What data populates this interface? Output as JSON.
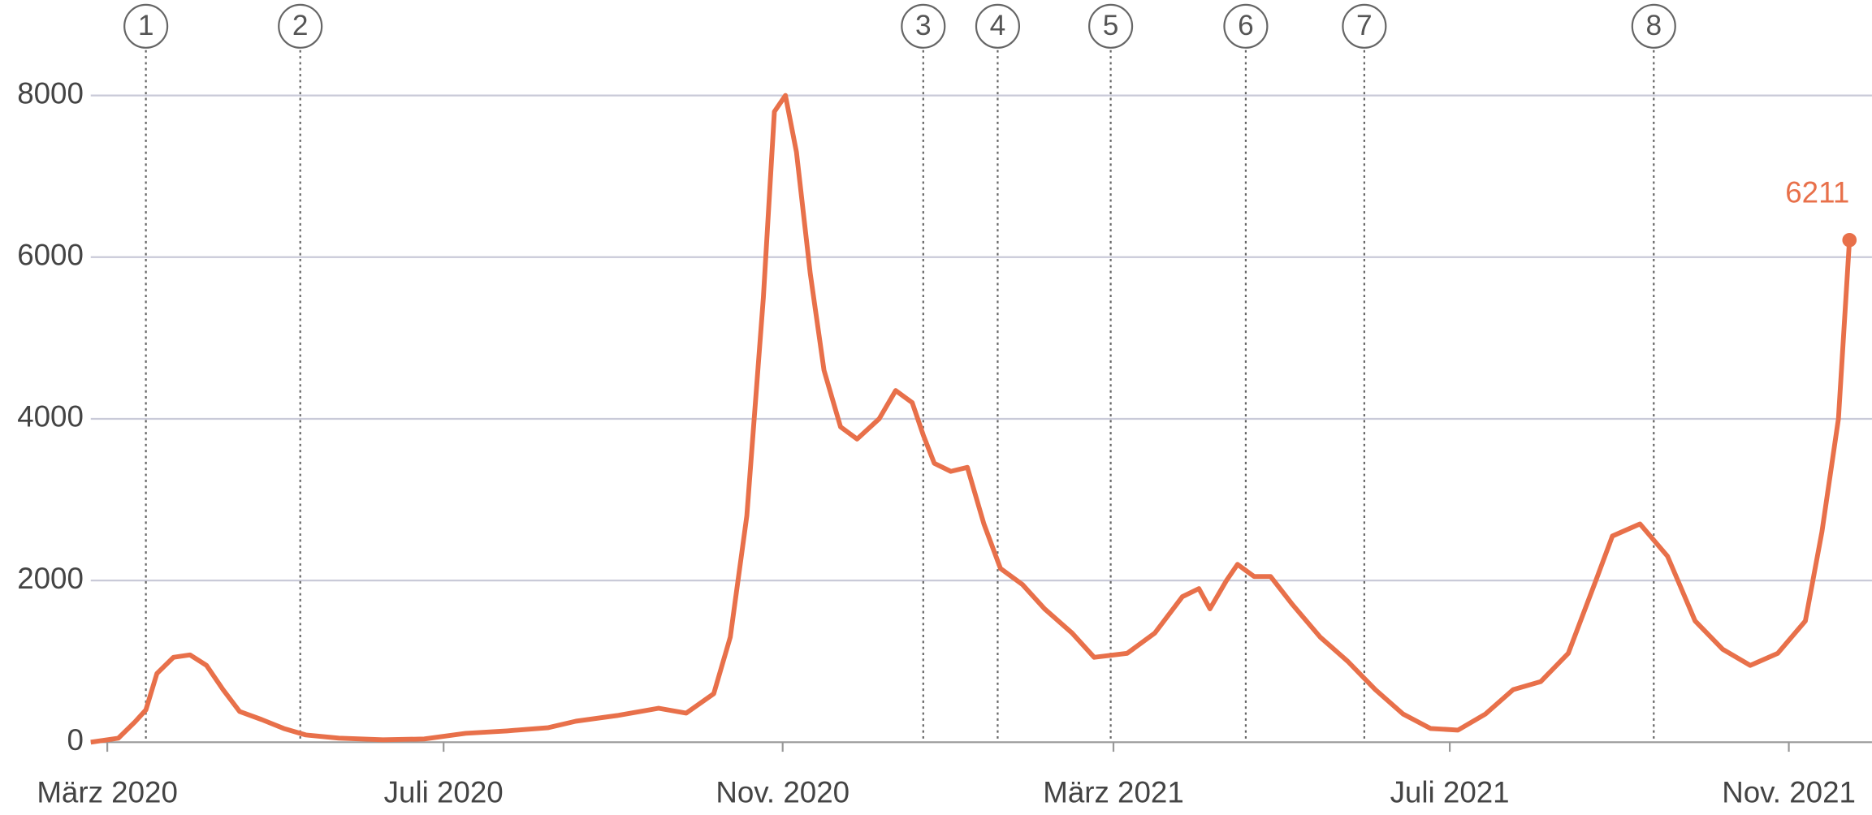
{
  "chart_data": {
    "type": "line",
    "x": [
      -6,
      4,
      10,
      14,
      18,
      24,
      30,
      36,
      42,
      48,
      56,
      64,
      72,
      84,
      100,
      115,
      130,
      145,
      160,
      170,
      185,
      200,
      210,
      220,
      226,
      232,
      238,
      242,
      246,
      250,
      255,
      260,
      266,
      272,
      280,
      286,
      292,
      296,
      300,
      306,
      312,
      318,
      324,
      332,
      340,
      350,
      358,
      370,
      380,
      390,
      396,
      400,
      406,
      410,
      416,
      422,
      430,
      440,
      450,
      460,
      470,
      480,
      490,
      500,
      510,
      520,
      530,
      540,
      546,
      556,
      566,
      576,
      586,
      596,
      606,
      616,
      622,
      628,
      632
    ],
    "series": [
      {
        "name": null,
        "color": "#e8704a",
        "values": [
          0,
          50,
          250,
          400,
          850,
          1050,
          1080,
          950,
          650,
          380,
          280,
          170,
          90,
          50,
          30,
          40,
          110,
          140,
          180,
          260,
          330,
          420,
          360,
          600,
          1300,
          2800,
          5500,
          7800,
          8000,
          7300,
          5800,
          4600,
          3900,
          3750,
          4000,
          4350,
          4200,
          3800,
          3450,
          3350,
          3400,
          2700,
          2150,
          1950,
          1650,
          1350,
          1050,
          1100,
          1350,
          1800,
          1900,
          1650,
          2000,
          2200,
          2050,
          2050,
          1700,
          1300,
          1000,
          650,
          350,
          170,
          150,
          350,
          650,
          750,
          1100,
          2000,
          2550,
          2700,
          2300,
          1500,
          1150,
          950,
          1100,
          1500,
          2600,
          4000,
          6211
        ]
      }
    ],
    "xlim": [
      -6,
      638
    ],
    "xticks": [
      {
        "value": 0,
        "label": "März 2020"
      },
      {
        "value": 122,
        "label": "Juli 2020"
      },
      {
        "value": 245,
        "label": "Nov. 2020"
      },
      {
        "value": 365,
        "label": "März 2021"
      },
      {
        "value": 487,
        "label": "Juli 2021"
      },
      {
        "value": 610,
        "label": "Nov. 2021"
      }
    ],
    "ylim": [
      0,
      8000
    ],
    "yticks": [
      0,
      2000,
      4000,
      6000,
      8000
    ],
    "grid": true,
    "events": [
      {
        "label": "1",
        "x": 14
      },
      {
        "label": "2",
        "x": 70
      },
      {
        "label": "3",
        "x": 296
      },
      {
        "label": "4",
        "x": 323
      },
      {
        "label": "5",
        "x": 364
      },
      {
        "label": "6",
        "x": 413
      },
      {
        "label": "7",
        "x": 456
      },
      {
        "label": "8",
        "x": 561
      }
    ]
  }
}
